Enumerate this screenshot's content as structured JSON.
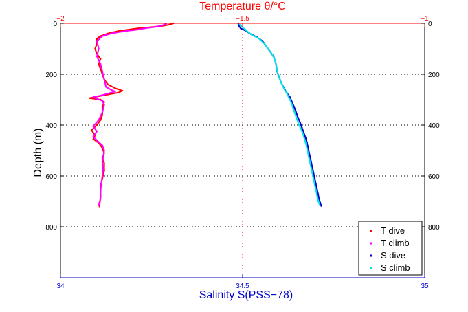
{
  "chart_data": {
    "type": "scatter",
    "title": "",
    "top_axis": {
      "label": "Temperature θ/°C",
      "range": [
        -2,
        -1
      ],
      "ticks": [
        {
          "value": -2,
          "label": "−2"
        },
        {
          "value": -1.5,
          "label": "−1.5"
        },
        {
          "value": -1,
          "label": "−1"
        }
      ],
      "color": "#ff0000"
    },
    "bottom_axis": {
      "label": "Salinity S(PSS−78)",
      "range": [
        34,
        35
      ],
      "ticks": [
        {
          "value": 34,
          "label": "34"
        },
        {
          "value": 34.5,
          "label": "34.5"
        },
        {
          "value": 35,
          "label": "35"
        }
      ],
      "color": "#0000cc"
    },
    "y_axis": {
      "label": "Depth (m)",
      "range": [
        0,
        1000
      ],
      "inverted": true,
      "ticks": [
        0,
        200,
        400,
        600,
        800
      ]
    },
    "grid": "dotted",
    "legend_position": "bottom-right",
    "series": [
      {
        "name": "T dive",
        "axis": "temperature",
        "color": "#ff0000",
        "points": [
          [
            -1.69,
            0
          ],
          [
            -1.7,
            5
          ],
          [
            -1.72,
            10
          ],
          [
            -1.75,
            15
          ],
          [
            -1.78,
            18
          ],
          [
            -1.8,
            22
          ],
          [
            -1.82,
            26
          ],
          [
            -1.84,
            30
          ],
          [
            -1.87,
            40
          ],
          [
            -1.89,
            50
          ],
          [
            -1.9,
            60
          ],
          [
            -1.9,
            80
          ],
          [
            -1.905,
            100
          ],
          [
            -1.9,
            120
          ],
          [
            -1.89,
            140
          ],
          [
            -1.895,
            160
          ],
          [
            -1.89,
            180
          ],
          [
            -1.885,
            200
          ],
          [
            -1.88,
            220
          ],
          [
            -1.87,
            240
          ],
          [
            -1.85,
            255
          ],
          [
            -1.83,
            265
          ],
          [
            -1.84,
            272
          ],
          [
            -1.87,
            280
          ],
          [
            -1.9,
            288
          ],
          [
            -1.92,
            294
          ],
          [
            -1.89,
            300
          ],
          [
            -1.88,
            310
          ],
          [
            -1.885,
            330
          ],
          [
            -1.885,
            360
          ],
          [
            -1.89,
            380
          ],
          [
            -1.9,
            400
          ],
          [
            -1.915,
            420
          ],
          [
            -1.905,
            440
          ],
          [
            -1.91,
            455
          ],
          [
            -1.895,
            470
          ],
          [
            -1.885,
            490
          ],
          [
            -1.88,
            510
          ],
          [
            -1.885,
            530
          ],
          [
            -1.88,
            550
          ],
          [
            -1.88,
            580
          ],
          [
            -1.885,
            610
          ],
          [
            -1.89,
            640
          ],
          [
            -1.89,
            680
          ],
          [
            -1.893,
            720
          ]
        ]
      },
      {
        "name": "T climb",
        "axis": "temperature",
        "color": "#ff00ff",
        "points": [
          [
            -1.71,
            2
          ],
          [
            -1.72,
            8
          ],
          [
            -1.74,
            14
          ],
          [
            -1.77,
            20
          ],
          [
            -1.79,
            25
          ],
          [
            -1.83,
            32
          ],
          [
            -1.86,
            40
          ],
          [
            -1.885,
            50
          ],
          [
            -1.9,
            70
          ],
          [
            -1.895,
            100
          ],
          [
            -1.9,
            130
          ],
          [
            -1.89,
            160
          ],
          [
            -1.885,
            190
          ],
          [
            -1.88,
            220
          ],
          [
            -1.875,
            250
          ],
          [
            -1.86,
            262
          ],
          [
            -1.85,
            268
          ],
          [
            -1.87,
            276
          ],
          [
            -1.89,
            284
          ],
          [
            -1.91,
            290
          ],
          [
            -1.9,
            296
          ],
          [
            -1.885,
            305
          ],
          [
            -1.88,
            320
          ],
          [
            -1.885,
            350
          ],
          [
            -1.895,
            380
          ],
          [
            -1.91,
            405
          ],
          [
            -1.9,
            425
          ],
          [
            -1.91,
            445
          ],
          [
            -1.9,
            460
          ],
          [
            -1.885,
            480
          ],
          [
            -1.88,
            500
          ],
          [
            -1.882,
            520
          ],
          [
            -1.885,
            545
          ],
          [
            -1.883,
            570
          ],
          [
            -1.885,
            600
          ],
          [
            -1.888,
            630
          ],
          [
            -1.89,
            660
          ],
          [
            -1.89,
            690
          ],
          [
            -1.895,
            715
          ]
        ]
      },
      {
        "name": "S dive",
        "axis": "salinity",
        "color": "#0000cc",
        "points": [
          [
            34.488,
            0
          ],
          [
            34.49,
            10
          ],
          [
            34.495,
            20
          ],
          [
            34.51,
            30
          ],
          [
            34.52,
            40
          ],
          [
            34.54,
            55
          ],
          [
            34.555,
            70
          ],
          [
            34.565,
            90
          ],
          [
            34.575,
            110
          ],
          [
            34.585,
            130
          ],
          [
            34.59,
            150
          ],
          [
            34.593,
            170
          ],
          [
            34.595,
            190
          ],
          [
            34.6,
            210
          ],
          [
            34.605,
            230
          ],
          [
            34.612,
            250
          ],
          [
            34.62,
            270
          ],
          [
            34.63,
            290
          ],
          [
            34.636,
            310
          ],
          [
            34.642,
            330
          ],
          [
            34.647,
            350
          ],
          [
            34.652,
            370
          ],
          [
            34.658,
            390
          ],
          [
            34.663,
            410
          ],
          [
            34.668,
            430
          ],
          [
            34.673,
            450
          ],
          [
            34.677,
            470
          ],
          [
            34.68,
            490
          ],
          [
            34.683,
            510
          ],
          [
            34.686,
            530
          ],
          [
            34.689,
            550
          ],
          [
            34.692,
            570
          ],
          [
            34.695,
            590
          ],
          [
            34.698,
            610
          ],
          [
            34.701,
            630
          ],
          [
            34.704,
            650
          ],
          [
            34.707,
            670
          ],
          [
            34.71,
            690
          ],
          [
            34.713,
            705
          ],
          [
            34.716,
            718
          ]
        ]
      },
      {
        "name": "S climb",
        "axis": "salinity",
        "color": "#00e5e5",
        "points": [
          [
            34.492,
            5
          ],
          [
            34.5,
            15
          ],
          [
            34.51,
            28
          ],
          [
            34.525,
            45
          ],
          [
            34.545,
            60
          ],
          [
            34.56,
            80
          ],
          [
            34.57,
            100
          ],
          [
            34.58,
            120
          ],
          [
            34.588,
            140
          ],
          [
            34.592,
            160
          ],
          [
            34.594,
            180
          ],
          [
            34.597,
            200
          ],
          [
            34.602,
            220
          ],
          [
            34.608,
            240
          ],
          [
            34.615,
            260
          ],
          [
            34.623,
            280
          ],
          [
            34.63,
            300
          ],
          [
            34.636,
            320
          ],
          [
            34.64,
            340
          ],
          [
            34.645,
            360
          ],
          [
            34.65,
            380
          ],
          [
            34.655,
            400
          ],
          [
            34.662,
            420
          ],
          [
            34.667,
            440
          ],
          [
            34.671,
            460
          ],
          [
            34.675,
            480
          ],
          [
            34.678,
            500
          ],
          [
            34.681,
            520
          ],
          [
            34.684,
            540
          ],
          [
            34.687,
            560
          ],
          [
            34.69,
            580
          ],
          [
            34.693,
            600
          ],
          [
            34.696,
            620
          ],
          [
            34.699,
            640
          ],
          [
            34.702,
            660
          ],
          [
            34.705,
            680
          ],
          [
            34.708,
            700
          ],
          [
            34.712,
            715
          ]
        ]
      }
    ]
  }
}
